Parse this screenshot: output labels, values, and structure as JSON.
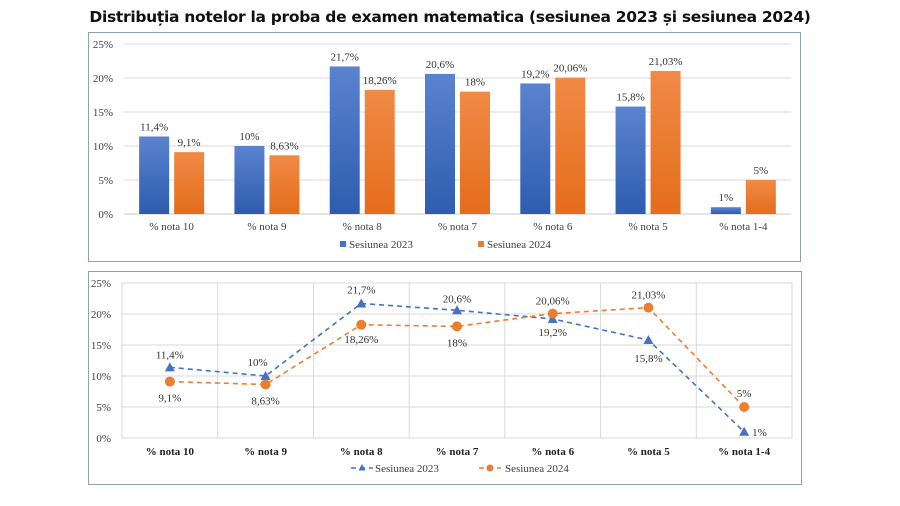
{
  "title": "Distribuția notelor la proba de examen matematica (sesiunea 2023 și sesiunea 2024)",
  "colors": {
    "s2023": "#4472c4",
    "s2023_dark": "#2f5cb0",
    "s2024": "#ed7d31",
    "s2024_dark": "#e06a18",
    "grid": "#d9d9d9",
    "border": "#8fa2b4"
  },
  "chart_data": [
    {
      "type": "bar",
      "title": "",
      "categories": [
        "% nota 10",
        "% nota 9",
        "% nota 8",
        "% nota 7",
        "% nota 6",
        "% nota 5",
        "% nota 1-4"
      ],
      "series": [
        {
          "name": "Sesiunea 2023",
          "values": [
            11.4,
            10,
            21.7,
            20.6,
            19.2,
            15.8,
            1
          ],
          "labels": [
            "11,4%",
            "10%",
            "21,7%",
            "20,6%",
            "19,2%",
            "15,8%",
            "1%"
          ]
        },
        {
          "name": "Sesiunea 2024",
          "values": [
            9.1,
            8.63,
            18.26,
            18,
            20.06,
            21.03,
            5
          ],
          "labels": [
            "9,1%",
            "8,63%",
            "18,26%",
            "18%",
            "20,06%",
            "21,03%",
            "5%"
          ]
        }
      ],
      "xlabel": "",
      "ylabel": "",
      "ylim": [
        0,
        25
      ],
      "yticks": [
        "0%",
        "5%",
        "10%",
        "15%",
        "20%",
        "25%"
      ],
      "grid": "horizontal",
      "legend": "bottom"
    },
    {
      "type": "line",
      "title": "",
      "categories": [
        "% nota 10",
        "% nota 9",
        "% nota 8",
        "% nota 7",
        "% nota 6",
        "% nota 5",
        "% nota 1-4"
      ],
      "series": [
        {
          "name": "Sesiunea 2023",
          "marker": "triangle",
          "dash": "dashed",
          "values": [
            11.4,
            10,
            21.7,
            20.6,
            19.2,
            15.8,
            1
          ],
          "labels": [
            "11,4%",
            "10%",
            "21,7%",
            "20,6%",
            "19,2%",
            "15,8%",
            "1%"
          ]
        },
        {
          "name": "Sesiunea 2024",
          "marker": "circle",
          "dash": "dashed",
          "values": [
            9.1,
            8.63,
            18.26,
            18,
            20.06,
            21.03,
            5
          ],
          "labels": [
            "9,1%",
            "8,63%",
            "18,26%",
            "18%",
            "20,06%",
            "21,03%",
            "5%"
          ]
        }
      ],
      "xlabel": "",
      "ylabel": "",
      "ylim": [
        0,
        25
      ],
      "yticks": [
        "0%",
        "5%",
        "10%",
        "15%",
        "20%",
        "25%"
      ],
      "grid": "both",
      "legend": "bottom"
    }
  ]
}
